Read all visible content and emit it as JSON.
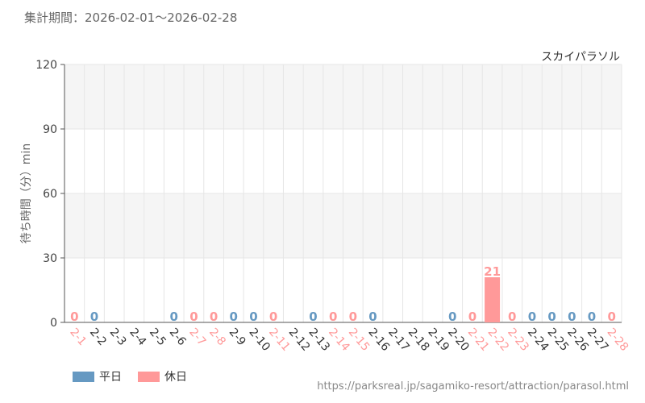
{
  "header": {
    "period_label": "集計期間：",
    "period_start": "2026-02-01",
    "period_sep": "〜",
    "period_end": "2026-02-28"
  },
  "source_url": "https://parksreal.jp/sagamiko-resort/attraction/parasol.html",
  "colors": {
    "weekday": "#6699c2",
    "holiday": "#ff9999",
    "grid": "#e6e6e6",
    "band": "#f5f5f5",
    "axis": "#555555"
  },
  "chart_data": {
    "type": "bar",
    "title": "スカイパラソル",
    "ylabel": "待ち時間（分）min",
    "ylim": [
      0,
      120
    ],
    "yticks": [
      0,
      30,
      60,
      90,
      120
    ],
    "grid": true,
    "legend_position": "bottom-left",
    "categories": [
      "2-1",
      "2-2",
      "2-3",
      "2-4",
      "2-5",
      "2-6",
      "2-7",
      "2-8",
      "2-9",
      "2-10",
      "2-11",
      "2-12",
      "2-13",
      "2-14",
      "2-15",
      "2-16",
      "2-17",
      "2-18",
      "2-19",
      "2-20",
      "2-21",
      "2-22",
      "2-23",
      "2-24",
      "2-25",
      "2-26",
      "2-27",
      "2-28"
    ],
    "day_types": [
      "holiday",
      "weekday",
      "weekday",
      "weekday",
      "weekday",
      "weekday",
      "holiday",
      "holiday",
      "weekday",
      "weekday",
      "holiday",
      "weekday",
      "weekday",
      "holiday",
      "holiday",
      "weekday",
      "weekday",
      "weekday",
      "weekday",
      "weekday",
      "holiday",
      "holiday",
      "holiday",
      "weekday",
      "weekday",
      "weekday",
      "weekday",
      "holiday"
    ],
    "series": [
      {
        "name": "平日",
        "values": [
          null,
          0,
          null,
          null,
          null,
          0,
          null,
          null,
          0,
          0,
          null,
          null,
          0,
          null,
          null,
          0,
          null,
          null,
          null,
          0,
          null,
          null,
          null,
          0,
          0,
          0,
          0,
          null
        ]
      },
      {
        "name": "休日",
        "values": [
          0,
          null,
          null,
          null,
          null,
          null,
          0,
          0,
          null,
          null,
          0,
          null,
          null,
          0,
          0,
          null,
          null,
          null,
          null,
          null,
          0,
          21,
          0,
          null,
          null,
          null,
          null,
          0
        ]
      }
    ]
  }
}
